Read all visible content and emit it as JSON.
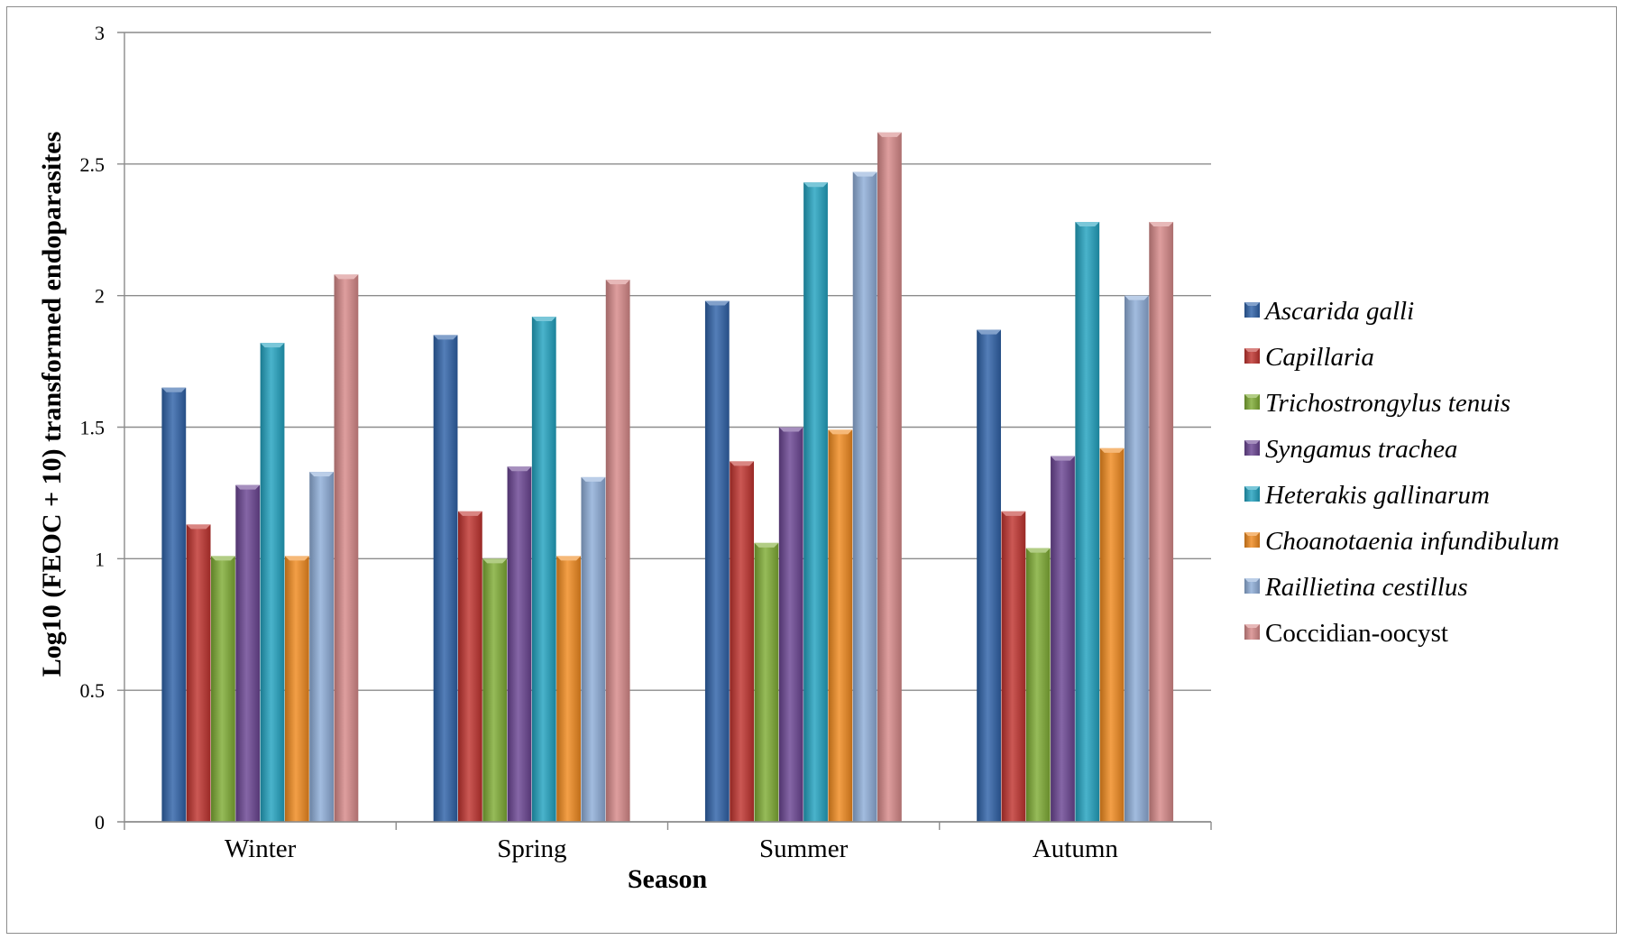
{
  "chart_data": {
    "type": "bar",
    "title": "",
    "xlabel": "Season",
    "ylabel": "Log10 (FEOC + 10) transformed endoparasites",
    "ylim": [
      0,
      3
    ],
    "yticks": [
      0,
      0.5,
      1,
      1.5,
      2,
      2.5,
      3
    ],
    "ytick_labels": [
      "0",
      "0.5",
      "1",
      "1.5",
      "2",
      "2.5",
      "3"
    ],
    "grid": true,
    "legend_position": "right",
    "categories": [
      "Winter",
      "Spring",
      "Summer",
      "Autumn"
    ],
    "series": [
      {
        "name": "Ascarida galli",
        "italic": true,
        "color": "#2f62a8",
        "values": [
          1.65,
          1.85,
          1.98,
          1.87
        ]
      },
      {
        "name": "Capillaria",
        "italic": true,
        "color": "#c0332f",
        "values": [
          1.13,
          1.18,
          1.37,
          1.18
        ]
      },
      {
        "name": "Trichostrongylus tenuis",
        "italic": true,
        "color": "#7fac34",
        "values": [
          1.01,
          1.0,
          1.06,
          1.04
        ]
      },
      {
        "name": "Syngamus trachea",
        "italic": true,
        "color": "#6a4592",
        "values": [
          1.28,
          1.35,
          1.5,
          1.39
        ]
      },
      {
        "name": "Heterakis gallinarum",
        "italic": true,
        "color": "#22a2c0",
        "values": [
          1.82,
          1.92,
          2.43,
          2.28
        ]
      },
      {
        "name": "Choanotaenia infundibulum",
        "italic": true,
        "color": "#f08a1f",
        "values": [
          1.01,
          1.01,
          1.49,
          1.42
        ]
      },
      {
        "name": "Raillietina cestillus",
        "italic": true,
        "color": "#8eadd8",
        "values": [
          1.33,
          1.31,
          2.47,
          2.0
        ]
      },
      {
        "name": "Coccidian-oocyst",
        "italic": false,
        "color": "#d78989",
        "values": [
          2.08,
          2.06,
          2.62,
          2.28
        ]
      }
    ]
  }
}
